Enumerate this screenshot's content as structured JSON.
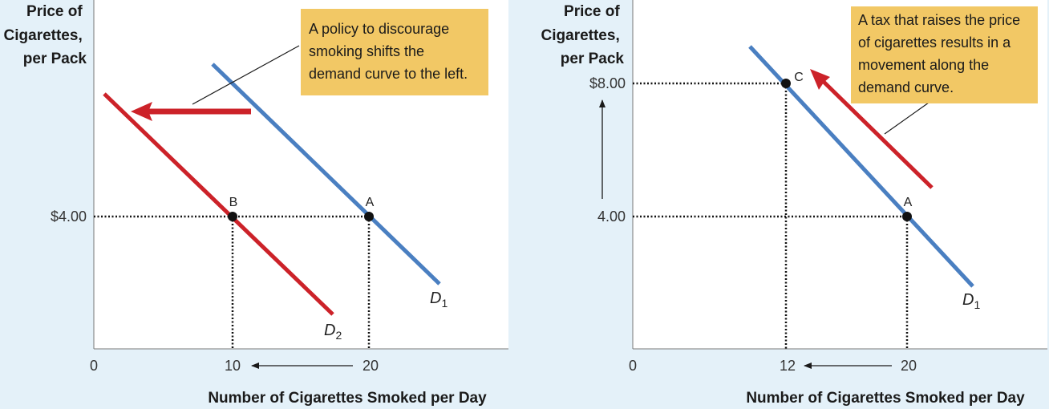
{
  "colors": {
    "background": "#e4f1f9",
    "plot_bg": "#ffffff",
    "blue_curve": "#4a7fc1",
    "red_curve": "#cc2229",
    "note_bg": "#f2c865"
  },
  "chart_data": [
    {
      "type": "line",
      "ylabel": [
        "Price of",
        "Cigarettes,",
        "per Pack"
      ],
      "xlabel": "Number of Cigarettes Smoked per Day",
      "x_ticks": [
        "0",
        "10",
        "20"
      ],
      "y_ticks": [
        "$4.00"
      ],
      "series": [
        {
          "name": "D",
          "subscript": "1",
          "color": "#4a7fc1",
          "x": [
            8.5,
            25
          ],
          "y": [
            5.5,
            3.5
          ]
        },
        {
          "name": "D",
          "subscript": "2",
          "color": "#cc2229",
          "x": [
            0.7,
            17.2
          ],
          "y": [
            5.1,
            3.1
          ]
        }
      ],
      "points": [
        {
          "label": "A",
          "x": 20,
          "y": 4.0
        },
        {
          "label": "B",
          "x": 10,
          "y": 4.0
        }
      ],
      "arrows": [
        {
          "type": "leftward-shift",
          "color": "#cc2229"
        },
        {
          "type": "axis-arrow",
          "from": 20,
          "to": 10,
          "axis": "x"
        }
      ],
      "annotation": [
        "A policy to discourage",
        "smoking shifts the",
        "demand curve to the left."
      ]
    },
    {
      "type": "line",
      "ylabel": [
        "Price of",
        "Cigarettes,",
        "per Pack"
      ],
      "xlabel": "Number of Cigarettes Smoked per Day",
      "x_ticks": [
        "0",
        "12",
        "20"
      ],
      "y_ticks": [
        "$8.00",
        "4.00"
      ],
      "series": [
        {
          "name": "D",
          "subscript": "1",
          "color": "#4a7fc1",
          "x": [
            8.5,
            24.5
          ],
          "y": [
            9.4,
            3.5
          ]
        }
      ],
      "points": [
        {
          "label": "C",
          "x": 12,
          "y": 8.0
        },
        {
          "label": "A",
          "x": 20,
          "y": 4.0
        }
      ],
      "arrows": [
        {
          "type": "movement-along-curve",
          "color": "#cc2229"
        },
        {
          "type": "axis-arrow",
          "from": 20,
          "to": 12,
          "axis": "x"
        },
        {
          "type": "axis-arrow",
          "from": 4.0,
          "to": 8.0,
          "axis": "y"
        }
      ],
      "annotation": [
        "A tax that raises the price",
        "of cigarettes results in a",
        "movement along the",
        "demand curve."
      ]
    }
  ]
}
